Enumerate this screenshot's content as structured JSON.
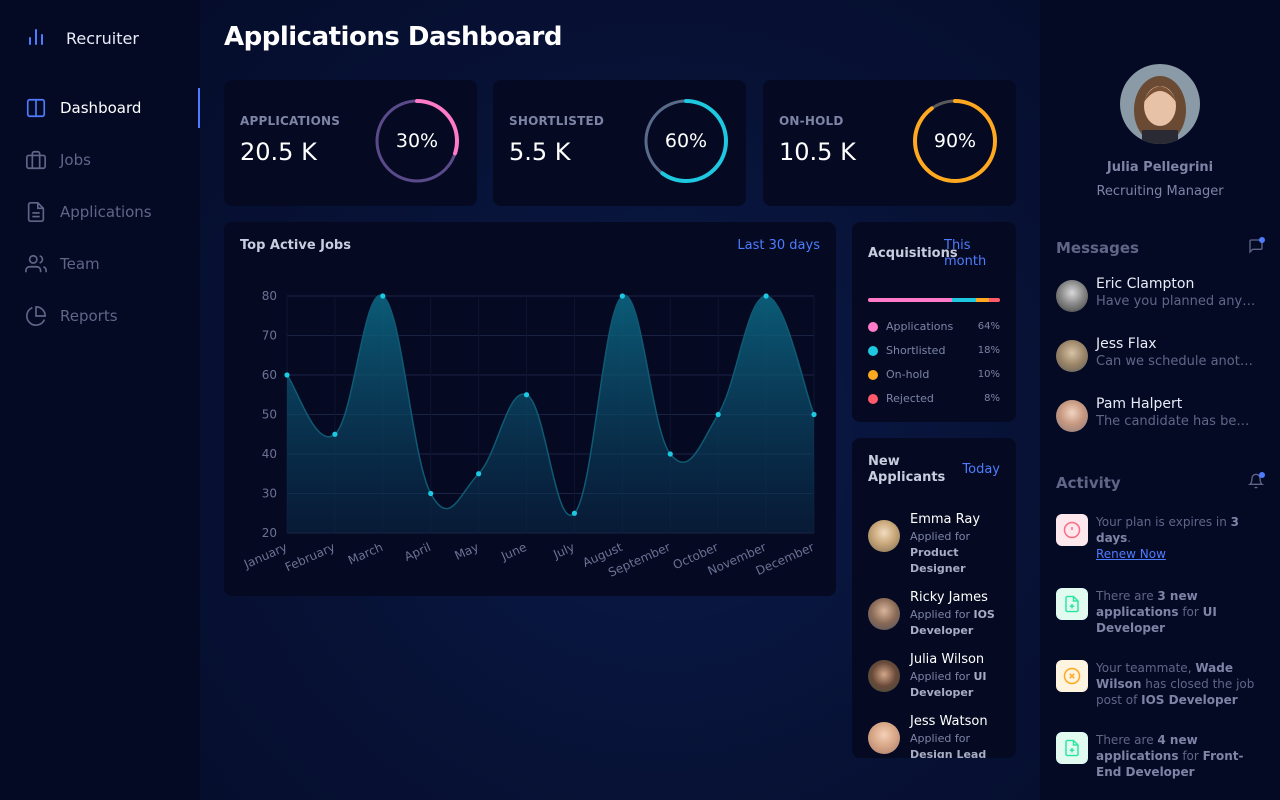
{
  "sidebar": {
    "brand": "Recruiter",
    "items": [
      {
        "label": "Dashboard",
        "icon": "layout-icon",
        "active": true
      },
      {
        "label": "Jobs",
        "icon": "briefcase-icon"
      },
      {
        "label": "Applications",
        "icon": "file-icon"
      },
      {
        "label": "Team",
        "icon": "users-icon"
      },
      {
        "label": "Reports",
        "icon": "pie-chart-icon"
      }
    ]
  },
  "main": {
    "title": "Applications Dashboard",
    "stats": [
      {
        "label": "APPLICATIONS",
        "value": "20.5 K",
        "percent": 30,
        "percent_label": "30%",
        "colors": [
          "#ff7ac8",
          "#5a4a8a"
        ]
      },
      {
        "label": "SHORTLISTED",
        "value": "5.5 K",
        "percent": 60,
        "percent_label": "60%",
        "colors": [
          "#1ec8e0",
          "#5a6a8a"
        ]
      },
      {
        "label": "ON-HOLD",
        "value": "10.5 K",
        "percent": 90,
        "percent_label": "90%",
        "colors": [
          "#ffa820",
          "#5a5a5a"
        ]
      }
    ]
  },
  "chart": {
    "title": "Top Active Jobs",
    "link": "Last 30 days"
  },
  "chart_data": {
    "type": "area",
    "categories": [
      "January",
      "February",
      "March",
      "April",
      "May",
      "June",
      "July",
      "August",
      "September",
      "October",
      "November",
      "December"
    ],
    "values": [
      60,
      45,
      80,
      30,
      35,
      55,
      25,
      80,
      40,
      50,
      80,
      50
    ],
    "ylim": [
      20,
      80
    ],
    "yticks": [
      "20",
      "30",
      "40",
      "50",
      "60",
      "70",
      "80"
    ],
    "color": "#1ec8e0"
  },
  "acquisitions": {
    "title": "Acquisitions",
    "link": "This month",
    "items": [
      {
        "label": "Applications",
        "pct": "64%",
        "value": 64,
        "color": "#ff7ac8"
      },
      {
        "label": "Shortlisted",
        "pct": "18%",
        "value": 18,
        "color": "#1ec8e0"
      },
      {
        "label": "On-hold",
        "pct": "10%",
        "value": 10,
        "color": "#ffa820"
      },
      {
        "label": "Rejected",
        "pct": "8%",
        "value": 8,
        "color": "#ff5a6a"
      }
    ]
  },
  "applicants": {
    "title_line1": "New",
    "title_line2": "Applicants",
    "link": "Today",
    "items": [
      {
        "name": "Emma Ray",
        "prefix": "Applied for",
        "role": "Product Designer"
      },
      {
        "name": "Ricky James",
        "prefix": "Applied for",
        "role": "IOS Developer"
      },
      {
        "name": "Julia Wilson",
        "prefix": "Applied for",
        "role": "UI Developer"
      },
      {
        "name": "Jess Watson",
        "prefix": "Applied for",
        "role": "Design Lead"
      }
    ]
  },
  "profile": {
    "name": "Julia Pellegrini",
    "role": "Recruiting Manager"
  },
  "messages": {
    "title": "Messages",
    "items": [
      {
        "name": "Eric Clampton",
        "text": "Have you planned any deadline for this?"
      },
      {
        "name": "Jess Flax",
        "text": "Can we schedule another meeting?"
      },
      {
        "name": "Pam Halpert",
        "text": "The candidate has been shortlisted"
      }
    ]
  },
  "activity": {
    "title": "Activity",
    "items": [
      {
        "parts": [
          "Your plan is expires in ",
          "3 days",
          "."
        ],
        "link": "Renew Now",
        "icon": "alert-circle-icon",
        "color": "#ff6b81"
      },
      {
        "parts": [
          "There are ",
          "3 new applications",
          " for ",
          "UI Developer"
        ],
        "icon": "file-plus-icon",
        "color": "#2ee6a0"
      },
      {
        "parts": [
          "Your teammate, ",
          "Wade Wilson",
          " has closed the job post of ",
          "IOS Developer"
        ],
        "icon": "x-circle-icon",
        "color": "#ffa820"
      },
      {
        "parts": [
          "There are ",
          "4 new applications",
          " for ",
          "Front-End Developer"
        ],
        "icon": "file-plus-icon",
        "color": "#2ee6a0"
      }
    ]
  }
}
